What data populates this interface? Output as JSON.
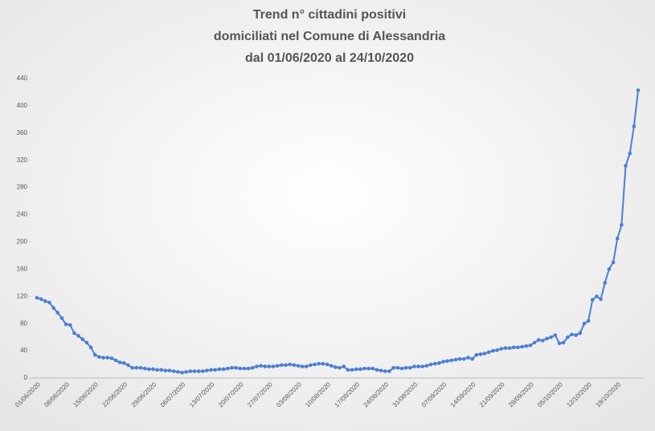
{
  "chart_data": {
    "type": "line",
    "title": [
      "Trend n° cittadini positivi",
      "domiciliati nel Comune di Alessandria",
      "dal 01/06/2020 al 24/10/2020"
    ],
    "categories": [
      "01/06/2020",
      null,
      null,
      null,
      null,
      null,
      null,
      "08/06/2020",
      null,
      null,
      null,
      null,
      null,
      null,
      "15/06/2020",
      null,
      null,
      null,
      null,
      null,
      null,
      "22/06/2020",
      null,
      null,
      null,
      null,
      null,
      null,
      "29/06/2020",
      null,
      null,
      null,
      null,
      null,
      null,
      "06/07/2020",
      null,
      null,
      null,
      null,
      null,
      null,
      "13/07/2020",
      null,
      null,
      null,
      null,
      null,
      null,
      "20/07/2020",
      null,
      null,
      null,
      null,
      null,
      null,
      "27/07/2020",
      null,
      null,
      null,
      null,
      null,
      null,
      "03/08/2020",
      null,
      null,
      null,
      null,
      null,
      null,
      "10/08/2020",
      null,
      null,
      null,
      null,
      null,
      null,
      "17/08/2020",
      null,
      null,
      null,
      null,
      null,
      null,
      "24/08/2020",
      null,
      null,
      null,
      null,
      null,
      null,
      "31/08/2020",
      null,
      null,
      null,
      null,
      null,
      null,
      "07/09/2020",
      null,
      null,
      null,
      null,
      null,
      null,
      "14/09/2020",
      null,
      null,
      null,
      null,
      null,
      null,
      "21/09/2020",
      null,
      null,
      null,
      null,
      null,
      null,
      "28/09/2020",
      null,
      null,
      null,
      null,
      null,
      null,
      "05/10/2020",
      null,
      null,
      null,
      null,
      null,
      null,
      "12/10/2020",
      null,
      null,
      null,
      null,
      null,
      null,
      "19/10/2020",
      null,
      null,
      null,
      null,
      null
    ],
    "values": [
      118,
      116,
      113,
      111,
      103,
      96,
      88,
      79,
      78,
      66,
      62,
      57,
      52,
      45,
      34,
      31,
      30,
      30,
      29,
      26,
      23,
      22,
      19,
      15,
      15,
      15,
      14,
      13,
      13,
      12,
      12,
      11,
      11,
      10,
      9,
      8,
      9,
      10,
      10,
      10,
      10,
      11,
      12,
      12,
      13,
      13,
      14,
      15,
      15,
      14,
      14,
      14,
      15,
      17,
      18,
      17,
      17,
      17,
      18,
      19,
      19,
      20,
      19,
      18,
      17,
      17,
      19,
      20,
      21,
      21,
      20,
      18,
      16,
      15,
      17,
      12,
      12,
      13,
      13,
      14,
      14,
      14,
      12,
      11,
      10,
      10,
      15,
      15,
      14,
      15,
      15,
      17,
      17,
      17,
      18,
      20,
      21,
      22,
      24,
      25,
      26,
      27,
      28,
      28,
      30,
      28,
      34,
      35,
      36,
      38,
      40,
      41,
      43,
      44,
      44,
      45,
      45,
      46,
      47,
      48,
      52,
      56,
      55,
      58,
      60,
      63,
      51,
      52,
      60,
      64,
      63,
      66,
      80,
      84,
      115,
      120,
      116,
      140,
      160,
      170,
      205,
      225,
      312,
      330,
      370,
      423
    ],
    "color": "#4a7fd4",
    "ylim": [
      0,
      440
    ],
    "yticks": [
      0,
      40,
      80,
      120,
      160,
      200,
      240,
      280,
      320,
      360,
      400,
      440
    ],
    "grid": false
  }
}
